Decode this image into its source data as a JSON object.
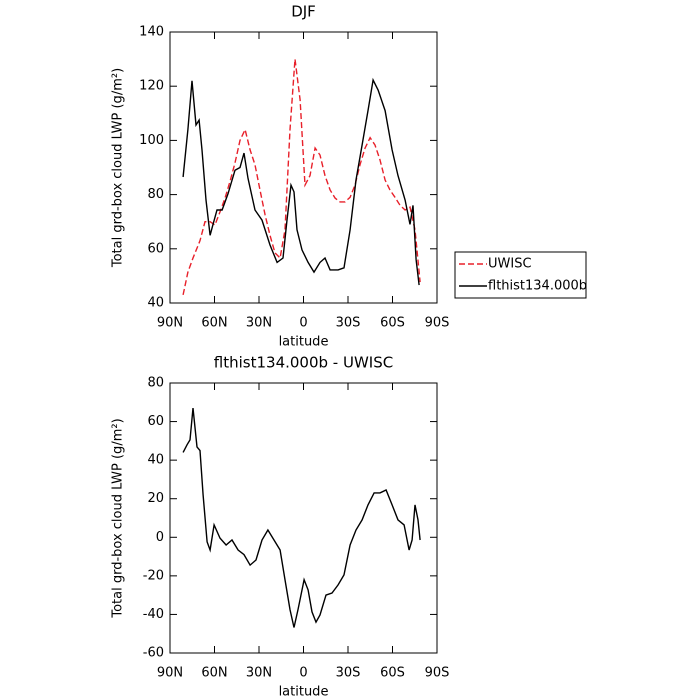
{
  "chart_data": [
    {
      "type": "line",
      "title": "DJF",
      "xlabel": "latitude",
      "ylabel": "Total grd-box cloud LWP (g/m²)",
      "xlim": [
        90,
        -90
      ],
      "xticks": [
        {
          "value": 90,
          "label": "90N"
        },
        {
          "value": 60,
          "label": "60N"
        },
        {
          "value": 30,
          "label": "30N"
        },
        0,
        {
          "value": -30,
          "label": "30S"
        },
        {
          "value": -60,
          "label": "60S"
        },
        {
          "value": -90,
          "label": "90S"
        }
      ],
      "ylim": [
        40,
        140
      ],
      "yticks": [
        40,
        60,
        80,
        100,
        120,
        140
      ],
      "legend": "right",
      "series": [
        {
          "name": "UWISC",
          "color": "#e8202a",
          "dashed": true,
          "x": [
            81.2,
            77.9,
            74.5,
            69.8,
            66.4,
            63,
            59.7,
            56.3,
            52.9,
            49.5,
            46.2,
            42.8,
            39.4,
            36,
            32.7,
            29.3,
            25.9,
            22.6,
            19.2,
            15.8,
            12.5,
            9.1,
            5.7,
            2.3,
            -1,
            -4.4,
            -7.8,
            -11.1,
            -14.5,
            -17.9,
            -21.3,
            -24.6,
            -28,
            -31.4,
            -34.7,
            -38.1,
            -41.5,
            -44.9,
            -48.2,
            -51.6,
            -55,
            -58.3,
            -61.7,
            -65.1,
            -68.5,
            -71.8,
            -75.2,
            -78.6
          ],
          "values": [
            43,
            51.4,
            56.6,
            63,
            70,
            70,
            68.8,
            73.6,
            78.7,
            85,
            91.7,
            100,
            104,
            96.5,
            91,
            81.7,
            72.5,
            65,
            58.5,
            56.6,
            67,
            104,
            130,
            115,
            83.5,
            87,
            97.2,
            94.6,
            87,
            81.7,
            78.7,
            77.3,
            77.3,
            79,
            83.5,
            91,
            97.2,
            101,
            98.3,
            92.8,
            85.4,
            81.7,
            79,
            76,
            74.3,
            75.4,
            67,
            47.7
          ]
        },
        {
          "name": "flthist134.000b",
          "color": "#000000",
          "dashed": false,
          "x": [
            81.2,
            77.9,
            75.2,
            72.5,
            70.4,
            68.4,
            65.7,
            63,
            61,
            58.3,
            54.9,
            50.9,
            46.2,
            42.8,
            40.1,
            37.4,
            32.7,
            28,
            22.6,
            17.8,
            13.8,
            11.1,
            8.4,
            6.4,
            4.4,
            1,
            -3.1,
            -7.1,
            -11.1,
            -14.5,
            -17.9,
            -23.3,
            -27.3,
            -31.4,
            -35.4,
            -39.5,
            -43.5,
            -46.9,
            -50.3,
            -55,
            -59.7,
            -63.7,
            -68.5,
            -71.8,
            -73.8,
            -75.9,
            -77.9
          ],
          "values": [
            86.5,
            104,
            122,
            105.7,
            107.5,
            96.5,
            78,
            65,
            69,
            74.3,
            74.3,
            80.3,
            89,
            90,
            95.3,
            86,
            74.3,
            70.6,
            61.4,
            55,
            56.6,
            70.6,
            83.5,
            81,
            67,
            59.6,
            55,
            51.4,
            55,
            56.6,
            52.2,
            52.2,
            53,
            67,
            85.4,
            98.3,
            111,
            122.3,
            118.6,
            111,
            96.5,
            87,
            78,
            69,
            76,
            56,
            46.6
          ]
        }
      ]
    },
    {
      "type": "line",
      "title": "flthist134.000b - UWISC",
      "xlabel": "latitude",
      "ylabel": "Total grd-box cloud LWP (g/m²)",
      "xlim": [
        90,
        -90
      ],
      "xticks": [
        {
          "value": 90,
          "label": "90N"
        },
        {
          "value": 60,
          "label": "60N"
        },
        {
          "value": 30,
          "label": "30N"
        },
        0,
        {
          "value": -30,
          "label": "30S"
        },
        {
          "value": -60,
          "label": "60S"
        },
        {
          "value": -90,
          "label": "90S"
        }
      ],
      "ylim": [
        -60,
        80
      ],
      "yticks": [
        -60,
        -40,
        -20,
        0,
        20,
        40,
        60,
        80
      ],
      "series": [
        {
          "color": "#000000",
          "dashed": false,
          "x": [
            81.2,
            78.5,
            76.5,
            74.5,
            71.8,
            69.8,
            67.7,
            65,
            63,
            60.3,
            56.3,
            52.2,
            48.2,
            44.1,
            40.1,
            36,
            32,
            28,
            24,
            19.9,
            15.8,
            12.5,
            9.1,
            6.4,
            3.7,
            -0.4,
            -3.1,
            -5.7,
            -8.4,
            -11.1,
            -15.2,
            -19.2,
            -23.3,
            -27.3,
            -31.4,
            -35.4,
            -39.5,
            -43.5,
            -47.6,
            -51.6,
            -55.7,
            -59.7,
            -63.7,
            -67.8,
            -71.2,
            -73.2,
            -75.2,
            -77.2,
            -78.6
          ],
          "values": [
            44,
            48,
            50.5,
            67,
            46.8,
            45,
            22,
            -2.4,
            -6.6,
            6.4,
            -0.4,
            -4,
            -1.4,
            -6.6,
            -9,
            -14.4,
            -11.8,
            -1.4,
            3.8,
            -1.4,
            -6.6,
            -22,
            -37.5,
            -46.8,
            -37.5,
            -22,
            -27.3,
            -38.7,
            -44,
            -40.3,
            -30,
            -28.9,
            -24.7,
            -19.5,
            -4,
            3.8,
            9,
            16.8,
            23,
            23,
            24.5,
            16.8,
            9,
            6.4,
            -6.6,
            -1.4,
            16.8,
            9,
            -1.4
          ]
        }
      ]
    }
  ]
}
